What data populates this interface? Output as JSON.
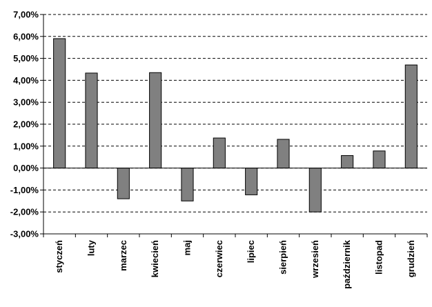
{
  "chart_data": {
    "type": "bar",
    "categories": [
      "styczeń",
      "luty",
      "marzec",
      "kwiecień",
      "maj",
      "czerwiec",
      "lipiec",
      "sierpień",
      "wrzesień",
      "październik",
      "listopad",
      "grudzień"
    ],
    "values": [
      5.9,
      4.33,
      -1.4,
      4.35,
      -1.5,
      1.37,
      -1.22,
      1.31,
      -2.0,
      0.57,
      0.78,
      4.7
    ],
    "ylim": [
      -3,
      7
    ],
    "y_ticks": [
      7,
      6,
      5,
      4,
      3,
      2,
      1,
      0,
      -1,
      -2,
      -3
    ],
    "y_tick_labels": [
      "7,00%",
      "6,00%",
      "5,00%",
      "4,00%",
      "3,00%",
      "2,00%",
      "1,00%",
      "0,00%",
      "-1,00%",
      "-2,00%",
      "-3,00%"
    ],
    "grid": "dashed horizontal",
    "legend": "none",
    "colors": {
      "bar_fill": "#808080",
      "bar_stroke": "#000000",
      "axis": "#000000",
      "grid": "#000000"
    }
  }
}
